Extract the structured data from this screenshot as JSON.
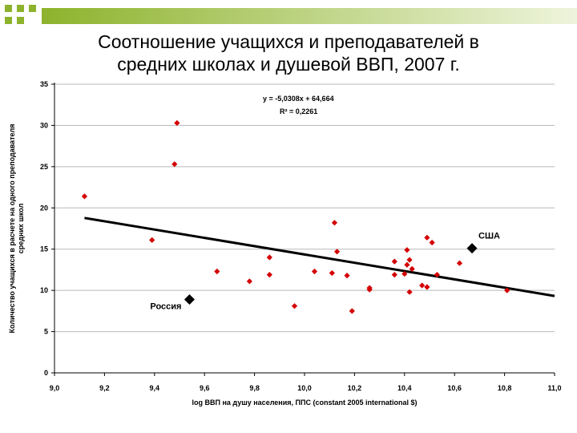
{
  "slide": {
    "title_line1": "Соотношение учащихся и преподавателей в",
    "title_line2": "средних школах и душевой ВВП, 2007 г.",
    "colors": {
      "accent": "#8db32c",
      "accent_light": "#c9dc8a",
      "points": "#d40000",
      "trend": "#000000"
    }
  },
  "chart_data": {
    "type": "scatter",
    "xlabel": "log ВВП на душу населения, ППС (constant 2005 international $)",
    "ylabel_line1": "Количество учащихся в расчете на одного преподавателя",
    "ylabel_line2": "средних школ",
    "xlim": [
      9.0,
      11.0
    ],
    "ylim": [
      0,
      35
    ],
    "xticks": [
      "9,0",
      "9,2",
      "9,4",
      "9,6",
      "9,8",
      "10,0",
      "10,2",
      "10,4",
      "10,6",
      "10,8",
      "11,0"
    ],
    "yticks": [
      "0",
      "5",
      "10",
      "15",
      "20",
      "25",
      "30",
      "35"
    ],
    "grid": "horizontal",
    "equation": "y = -5,0308x + 64,664",
    "r_squared": "R² = 0,2261",
    "trendline": {
      "slope": -5.0308,
      "intercept": 64.664
    },
    "points": [
      {
        "x": 9.12,
        "y": 21.4
      },
      {
        "x": 9.39,
        "y": 16.1
      },
      {
        "x": 9.48,
        "y": 25.3
      },
      {
        "x": 9.49,
        "y": 30.3
      },
      {
        "x": 9.65,
        "y": 12.3
      },
      {
        "x": 9.78,
        "y": 11.1
      },
      {
        "x": 9.86,
        "y": 11.9
      },
      {
        "x": 9.86,
        "y": 14.0
      },
      {
        "x": 9.96,
        "y": 8.1
      },
      {
        "x": 10.04,
        "y": 12.3
      },
      {
        "x": 10.11,
        "y": 12.1
      },
      {
        "x": 10.12,
        "y": 18.2
      },
      {
        "x": 10.13,
        "y": 14.7
      },
      {
        "x": 10.17,
        "y": 11.8
      },
      {
        "x": 10.19,
        "y": 7.5
      },
      {
        "x": 10.26,
        "y": 10.1
      },
      {
        "x": 10.26,
        "y": 10.3
      },
      {
        "x": 10.36,
        "y": 13.5
      },
      {
        "x": 10.36,
        "y": 11.9
      },
      {
        "x": 10.4,
        "y": 12.0
      },
      {
        "x": 10.41,
        "y": 14.9
      },
      {
        "x": 10.41,
        "y": 13.1
      },
      {
        "x": 10.42,
        "y": 13.7
      },
      {
        "x": 10.42,
        "y": 9.8
      },
      {
        "x": 10.43,
        "y": 12.6
      },
      {
        "x": 10.47,
        "y": 10.6
      },
      {
        "x": 10.49,
        "y": 10.4
      },
      {
        "x": 10.49,
        "y": 16.4
      },
      {
        "x": 10.51,
        "y": 15.8
      },
      {
        "x": 10.53,
        "y": 11.9
      },
      {
        "x": 10.62,
        "y": 13.3
      },
      {
        "x": 10.81,
        "y": 10.0
      }
    ],
    "highlighted": [
      {
        "label": "США",
        "x": 10.67,
        "y": 15.1
      },
      {
        "label": "Россия",
        "x": 9.54,
        "y": 8.9
      }
    ]
  }
}
